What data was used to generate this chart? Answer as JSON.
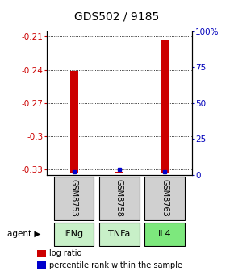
{
  "title": "GDS502 / 9185",
  "samples": [
    "GSM8753",
    "GSM8758",
    "GSM8763"
  ],
  "agents": [
    "IFNg",
    "TNFa",
    "IL4"
  ],
  "sample_box_color": "#d0d0d0",
  "agent_colors": [
    "#c8f0c8",
    "#c8f0c8",
    "#7de87d"
  ],
  "ylim_left": [
    -0.335,
    -0.205
  ],
  "yticks_left": [
    -0.33,
    -0.3,
    -0.27,
    -0.24,
    -0.21
  ],
  "yticks_right": [
    0,
    25,
    50,
    75,
    100
  ],
  "ylim_right": [
    0,
    100
  ],
  "log_ratios": [
    -0.241,
    -0.332,
    -0.213
  ],
  "percentile_ranks": [
    2.0,
    3.5,
    2.0
  ],
  "bar_bottom": -0.333,
  "red_color": "#cc0000",
  "blue_color": "#0000cc",
  "left_tick_color": "#cc0000",
  "right_tick_color": "#0000bb",
  "legend_red_label": "log ratio",
  "legend_blue_label": "percentile rank within the sample"
}
